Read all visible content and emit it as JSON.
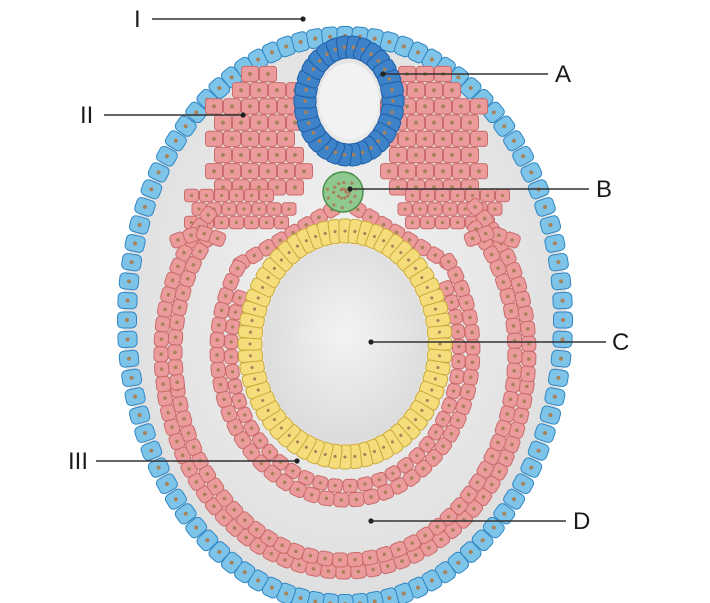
{
  "labels": {
    "I": "I",
    "II": "II",
    "III": "III",
    "A": "A",
    "B": "B",
    "C": "C",
    "D": "D"
  },
  "colors": {
    "ectoderm_fill": "#7ec3e8",
    "ectoderm_stroke": "#2f86c4",
    "neural_tube_fill": "#3e82c9",
    "neural_tube_stroke": "#1f5fa6",
    "mesoderm_fill": "#eb9b9b",
    "mesoderm_stroke": "#c96b6b",
    "endoderm_fill": "#f6dd7c",
    "endoderm_stroke": "#c9a93a",
    "notochord_fill": "#8fc98f",
    "notochord_stroke": "#4a8f4a",
    "cavity_fill": "#e6e6e6",
    "nucleus_fill": "#a8825a"
  }
}
